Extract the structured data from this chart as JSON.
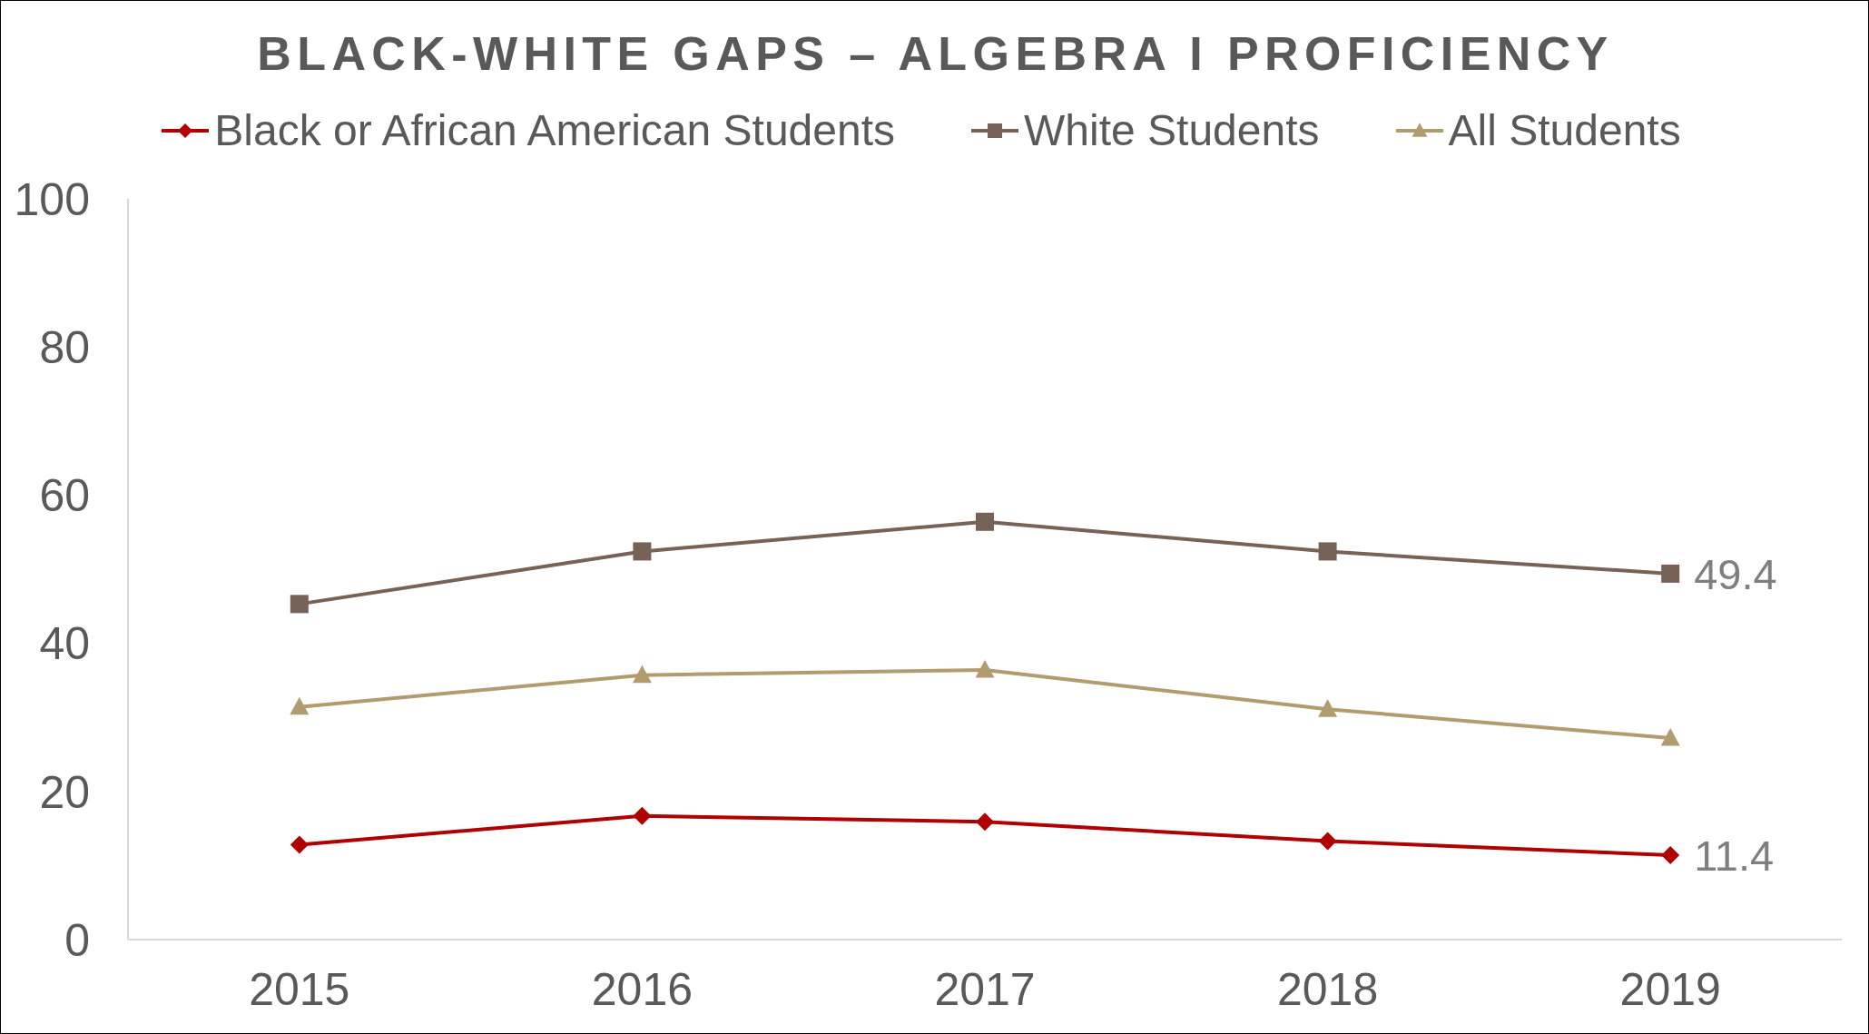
{
  "chart_data": {
    "type": "line",
    "title": "BLACK-WHITE GAPS – ALGEBRA I PROFICIENCY",
    "categories": [
      "2015",
      "2016",
      "2017",
      "2018",
      "2019"
    ],
    "series": [
      {
        "name": "Black or African American Students",
        "color": "#b00000",
        "marker": "diamond",
        "values": [
          12.8,
          16.7,
          15.9,
          13.3,
          11.4
        ],
        "value_labels": [
          null,
          null,
          null,
          null,
          "11.4"
        ]
      },
      {
        "name": "White Students",
        "color": "#766257",
        "marker": "square",
        "values": [
          45.3,
          52.4,
          56.4,
          52.4,
          49.4
        ],
        "value_labels": [
          null,
          null,
          null,
          null,
          "49.4"
        ]
      },
      {
        "name": "All Students",
        "color": "#b39b70",
        "marker": "triangle",
        "values": [
          31.4,
          35.7,
          36.4,
          31.1,
          27.2
        ]
      }
    ],
    "ylim": [
      0,
      100
    ],
    "yticks": [
      0,
      20,
      40,
      60,
      80,
      100
    ],
    "grid": false,
    "legend": "top",
    "line_style": "solid"
  }
}
